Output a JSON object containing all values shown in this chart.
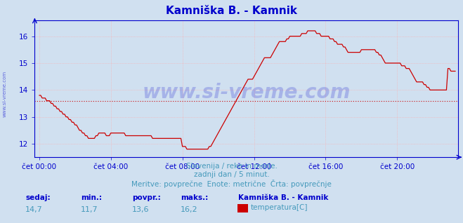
{
  "title": "Kamniška B. - Kamnik",
  "title_color": "#0000cc",
  "bg_color": "#d0e0f0",
  "plot_bg_color": "#d0e0f0",
  "line_color": "#cc0000",
  "avg_line_color": "#cc0000",
  "avg_value": 13.6,
  "x_ticks_labels": [
    "čet 00:00",
    "čet 04:00",
    "čet 08:00",
    "čet 12:00",
    "čet 16:00",
    "čet 20:00"
  ],
  "x_ticks_positions": [
    0,
    48,
    96,
    144,
    192,
    240
  ],
  "total_points": 288,
  "watermark": "www.si-vreme.com",
  "watermark_color": "#0000cc",
  "side_text": "www.si-vreme.com",
  "subtitle1": "Slovenija / reke in morje.",
  "subtitle2": "zadnji dan / 5 minut.",
  "subtitle3": "Meritve: povprečne  Enote: metrične  Črta: povprečnje",
  "subtitle_color": "#4499bb",
  "footer_labels": [
    "sedaj:",
    "min.:",
    "povpr.:",
    "maks.:"
  ],
  "footer_values": [
    "14,7",
    "11,7",
    "13,6",
    "16,2"
  ],
  "footer_label_color": "#0000cc",
  "footer_value_color": "#4499bb",
  "legend_title": "Kamniška B. - Kamnik",
  "legend_color": "#cc0000",
  "legend_label": "temperatura[C]",
  "grid_color": "#ffaaaa",
  "axis_color": "#0000cc",
  "y_ticks": [
    12,
    13,
    14,
    15,
    16
  ],
  "ylim_min": 11.5,
  "ylim_max": 16.6,
  "temperature_data": [
    13.8,
    13.8,
    13.7,
    13.7,
    13.7,
    13.6,
    13.6,
    13.6,
    13.5,
    13.5,
    13.4,
    13.4,
    13.3,
    13.3,
    13.2,
    13.2,
    13.1,
    13.1,
    13.0,
    13.0,
    12.9,
    12.9,
    12.8,
    12.8,
    12.7,
    12.7,
    12.6,
    12.5,
    12.5,
    12.4,
    12.4,
    12.3,
    12.3,
    12.2,
    12.2,
    12.2,
    12.2,
    12.2,
    12.3,
    12.3,
    12.4,
    12.4,
    12.4,
    12.4,
    12.4,
    12.3,
    12.3,
    12.3,
    12.4,
    12.4,
    12.4,
    12.4,
    12.4,
    12.4,
    12.4,
    12.4,
    12.4,
    12.4,
    12.3,
    12.3,
    12.3,
    12.3,
    12.3,
    12.3,
    12.3,
    12.3,
    12.3,
    12.3,
    12.3,
    12.3,
    12.3,
    12.3,
    12.3,
    12.3,
    12.3,
    12.3,
    12.2,
    12.2,
    12.2,
    12.2,
    12.2,
    12.2,
    12.2,
    12.2,
    12.2,
    12.2,
    12.2,
    12.2,
    12.2,
    12.2,
    12.2,
    12.2,
    12.2,
    12.2,
    12.2,
    12.2,
    11.9,
    11.9,
    11.9,
    11.8,
    11.8,
    11.8,
    11.8,
    11.8,
    11.8,
    11.8,
    11.8,
    11.8,
    11.8,
    11.8,
    11.8,
    11.8,
    11.8,
    11.8,
    11.9,
    11.9,
    12.0,
    12.1,
    12.2,
    12.3,
    12.4,
    12.5,
    12.6,
    12.7,
    12.8,
    12.9,
    13.0,
    13.1,
    13.2,
    13.3,
    13.4,
    13.5,
    13.6,
    13.7,
    13.8,
    13.9,
    14.0,
    14.1,
    14.2,
    14.3,
    14.4,
    14.4,
    14.4,
    14.4,
    14.5,
    14.6,
    14.7,
    14.8,
    14.9,
    15.0,
    15.1,
    15.2,
    15.2,
    15.2,
    15.2,
    15.2,
    15.3,
    15.4,
    15.5,
    15.6,
    15.7,
    15.8,
    15.8,
    15.8,
    15.8,
    15.8,
    15.9,
    15.9,
    16.0,
    16.0,
    16.0,
    16.0,
    16.0,
    16.0,
    16.0,
    16.0,
    16.1,
    16.1,
    16.1,
    16.1,
    16.2,
    16.2,
    16.2,
    16.2,
    16.2,
    16.2,
    16.1,
    16.1,
    16.1,
    16.0,
    16.0,
    16.0,
    16.0,
    16.0,
    16.0,
    15.9,
    15.9,
    15.9,
    15.8,
    15.8,
    15.7,
    15.7,
    15.7,
    15.7,
    15.6,
    15.6,
    15.5,
    15.4,
    15.4,
    15.4,
    15.4,
    15.4,
    15.4,
    15.4,
    15.4,
    15.4,
    15.5,
    15.5,
    15.5,
    15.5,
    15.5,
    15.5,
    15.5,
    15.5,
    15.5,
    15.5,
    15.4,
    15.4,
    15.3,
    15.3,
    15.2,
    15.1,
    15.0,
    15.0,
    15.0,
    15.0,
    15.0,
    15.0,
    15.0,
    15.0,
    15.0,
    15.0,
    15.0,
    14.9,
    14.9,
    14.9,
    14.8,
    14.8,
    14.8,
    14.7,
    14.6,
    14.5,
    14.4,
    14.3,
    14.3,
    14.3,
    14.3,
    14.3,
    14.2,
    14.2,
    14.1,
    14.1,
    14.0,
    14.0,
    14.0,
    14.0,
    14.0,
    14.0,
    14.0,
    14.0,
    14.0,
    14.0,
    14.0,
    14.0,
    14.8,
    14.8,
    14.7,
    14.7,
    14.7,
    14.7
  ]
}
